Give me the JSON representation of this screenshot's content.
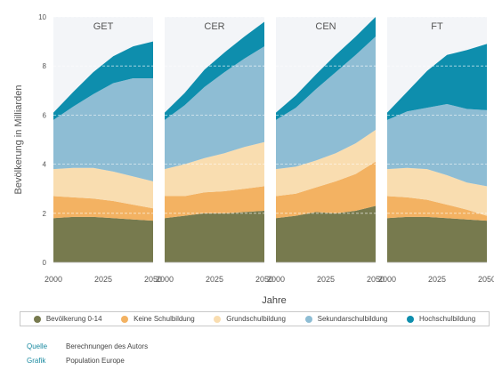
{
  "chart_data": {
    "type": "area",
    "stacked": true,
    "ylabel": "Bevölkerung in Milliarden",
    "xlabel": "Jahre",
    "ylim": [
      0,
      10
    ],
    "yticks": [
      0,
      2,
      4,
      6,
      8,
      10
    ],
    "xticks": [
      "2000",
      "2025",
      "2050"
    ],
    "grid": true,
    "legend_position": "bottom",
    "x": [
      2000,
      2010,
      2020,
      2030,
      2040,
      2050
    ],
    "series_names": [
      "Bevölkerung 0-14",
      "Keine Schulbildung",
      "Grundschulbildung",
      "Sekundarschulbildung",
      "Hochschulbildung"
    ],
    "colors": [
      "#777a4e",
      "#f3b262",
      "#f9ddb0",
      "#8ebdd4",
      "#0e8ead"
    ],
    "panels": [
      {
        "title": "GET",
        "series": [
          {
            "name": "Bevölkerung 0-14",
            "values": [
              1.8,
              1.85,
              1.85,
              1.8,
              1.75,
              1.7
            ]
          },
          {
            "name": "Keine Schulbildung",
            "values": [
              0.9,
              0.8,
              0.75,
              0.7,
              0.6,
              0.5
            ]
          },
          {
            "name": "Grundschulbildung",
            "values": [
              1.1,
              1.2,
              1.25,
              1.2,
              1.15,
              1.1
            ]
          },
          {
            "name": "Sekundarschulbildung",
            "values": [
              2.0,
              2.5,
              3.0,
              3.6,
              4.0,
              4.2
            ]
          },
          {
            "name": "Hochschulbildung",
            "values": [
              0.3,
              0.6,
              0.9,
              1.1,
              1.3,
              1.5
            ]
          }
        ]
      },
      {
        "title": "CER",
        "series": [
          {
            "name": "Bevölkerung 0-14",
            "values": [
              1.8,
              1.9,
              2.0,
              2.0,
              2.05,
              2.1
            ]
          },
          {
            "name": "Keine Schulbildung",
            "values": [
              0.9,
              0.8,
              0.85,
              0.9,
              0.95,
              1.0
            ]
          },
          {
            "name": "Grundschulbildung",
            "values": [
              1.1,
              1.3,
              1.4,
              1.55,
              1.7,
              1.8
            ]
          },
          {
            "name": "Sekundarschulbildung",
            "values": [
              2.0,
              2.4,
              2.9,
              3.3,
              3.6,
              3.9
            ]
          },
          {
            "name": "Hochschulbildung",
            "values": [
              0.3,
              0.5,
              0.7,
              0.8,
              0.9,
              1.0
            ]
          }
        ]
      },
      {
        "title": "CEN",
        "series": [
          {
            "name": "Bevölkerung 0-14",
            "values": [
              1.8,
              1.9,
              2.05,
              2.0,
              2.1,
              2.3
            ]
          },
          {
            "name": "Keine Schulbildung",
            "values": [
              0.9,
              0.9,
              1.0,
              1.3,
              1.5,
              1.8
            ]
          },
          {
            "name": "Grundschulbildung",
            "values": [
              1.1,
              1.1,
              1.1,
              1.15,
              1.25,
              1.3
            ]
          },
          {
            "name": "Sekundarschulbildung",
            "values": [
              2.0,
              2.4,
              2.9,
              3.3,
              3.6,
              3.8
            ]
          },
          {
            "name": "Hochschulbildung",
            "values": [
              0.3,
              0.5,
              0.6,
              0.7,
              0.75,
              0.8
            ]
          }
        ]
      },
      {
        "title": "FT",
        "series": [
          {
            "name": "Bevölkerung 0-14",
            "values": [
              1.8,
              1.85,
              1.85,
              1.8,
              1.75,
              1.7
            ]
          },
          {
            "name": "Keine Schulbildung",
            "values": [
              0.9,
              0.8,
              0.7,
              0.55,
              0.4,
              0.2
            ]
          },
          {
            "name": "Grundschulbildung",
            "values": [
              1.1,
              1.2,
              1.25,
              1.2,
              1.1,
              1.2
            ]
          },
          {
            "name": "Sekundarschulbildung",
            "values": [
              2.0,
              2.3,
              2.5,
              2.9,
              3.0,
              3.1
            ]
          },
          {
            "name": "Hochschulbildung",
            "values": [
              0.3,
              0.8,
              1.5,
              2.0,
              2.4,
              2.7
            ]
          }
        ]
      }
    ]
  },
  "legend": {
    "items": [
      "Bevölkerung 0-14",
      "Keine Schulbildung",
      "Grundschulbildung",
      "Sekundarschulbildung",
      "Hochschulbildung"
    ]
  },
  "footer": {
    "quelle_label": "Quelle",
    "quelle_value": "Berechnungen des Autors",
    "grafik_label": "Grafik",
    "grafik_value": "Population Europe"
  }
}
